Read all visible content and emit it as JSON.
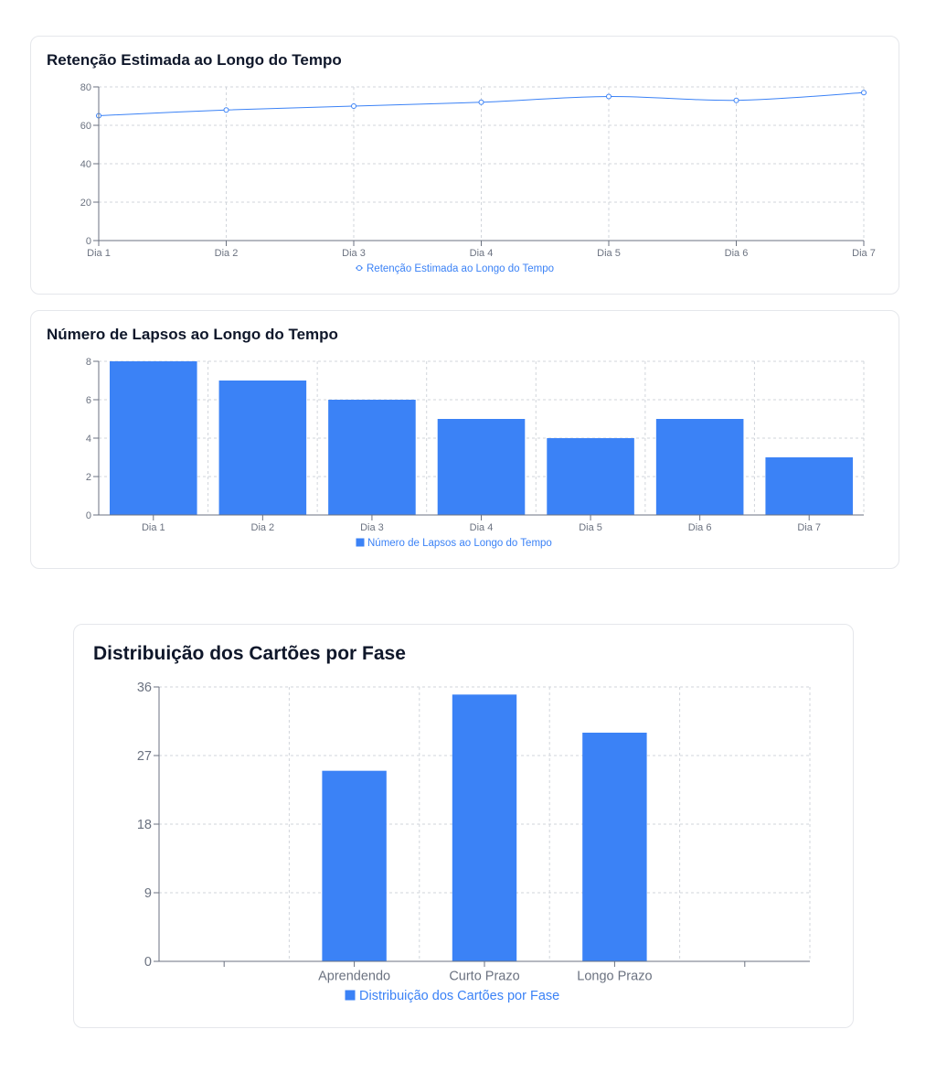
{
  "colors": {
    "series": "#3b82f6",
    "grid": "#d1d5db",
    "axis": "#6b7280"
  },
  "retention": {
    "title": "Retenção Estimada ao Longo do Tempo",
    "chart_data": {
      "type": "line",
      "title": "Retenção Estimada ao Longo do Tempo",
      "categories": [
        "Dia 1",
        "Dia 2",
        "Dia 3",
        "Dia 4",
        "Dia 5",
        "Dia 6",
        "Dia 7"
      ],
      "series": [
        {
          "name": "Retenção Estimada ao Longo do Tempo",
          "values": [
            65,
            68,
            70,
            72,
            75,
            73,
            77
          ]
        }
      ],
      "yticks": [
        0,
        20,
        40,
        60,
        80
      ],
      "ylim": [
        0,
        80
      ],
      "grid": true,
      "legend": "bottom-center"
    }
  },
  "lapses": {
    "title": "Número de Lapsos ao Longo do Tempo",
    "chart_data": {
      "type": "bar",
      "title": "Número de Lapsos ao Longo do Tempo",
      "categories": [
        "Dia 1",
        "Dia 2",
        "Dia 3",
        "Dia 4",
        "Dia 5",
        "Dia 6",
        "Dia 7"
      ],
      "series": [
        {
          "name": "Número de Lapsos ao Longo do Tempo",
          "values": [
            8,
            7,
            6,
            5,
            4,
            5,
            3
          ]
        }
      ],
      "yticks": [
        0,
        2,
        4,
        6,
        8
      ],
      "ylim": [
        0,
        8
      ],
      "grid": true,
      "legend": "bottom-center"
    }
  },
  "phases": {
    "title": "Distribuição dos Cartões por Fase",
    "chart_data": {
      "type": "bar",
      "title": "Distribuição dos Cartões por Fase",
      "categories": [
        "",
        "Aprendendo",
        "Curto Prazo",
        "Longo Prazo",
        ""
      ],
      "series": [
        {
          "name": "Distribuição dos Cartões por Fase",
          "values": [
            0,
            25,
            35,
            30,
            0
          ]
        }
      ],
      "yticks": [
        0,
        9,
        18,
        27,
        36
      ],
      "ylim": [
        0,
        36
      ],
      "grid": true,
      "legend": "bottom-center"
    }
  }
}
